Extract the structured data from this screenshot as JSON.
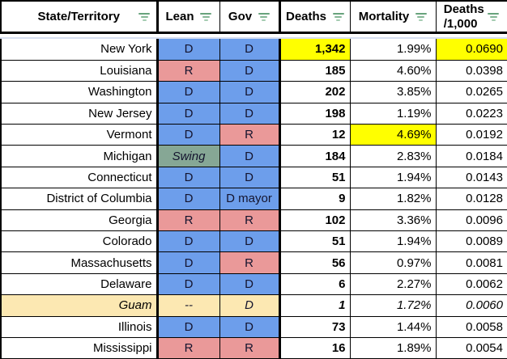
{
  "table": {
    "columns": [
      {
        "id": "state",
        "label": "State/Territory"
      },
      {
        "id": "lean",
        "label": "Lean"
      },
      {
        "id": "gov",
        "label": "Gov"
      },
      {
        "id": "deaths",
        "label": "Deaths"
      },
      {
        "id": "mortality",
        "label": "Mortality"
      },
      {
        "id": "rate",
        "label": "Deaths\n/1,000"
      }
    ],
    "rows": [
      {
        "state": "New York",
        "lean": "D",
        "lean_bg": "dem",
        "gov": "D",
        "gov_bg": "dem",
        "deaths": "1,342",
        "deaths_bg": "highlight",
        "mortality": "1.99%",
        "rate": "0.0690",
        "rate_bg": "highlight"
      },
      {
        "state": "Louisiana",
        "lean": "R",
        "lean_bg": "rep",
        "gov": "D",
        "gov_bg": "dem",
        "deaths": "185",
        "mortality": "4.60%",
        "rate": "0.0398"
      },
      {
        "state": "Washington",
        "lean": "D",
        "lean_bg": "dem",
        "gov": "D",
        "gov_bg": "dem",
        "deaths": "202",
        "mortality": "3.85%",
        "rate": "0.0265"
      },
      {
        "state": "New Jersey",
        "lean": "D",
        "lean_bg": "dem",
        "gov": "D",
        "gov_bg": "dem",
        "deaths": "198",
        "mortality": "1.19%",
        "rate": "0.0223"
      },
      {
        "state": "Vermont",
        "lean": "D",
        "lean_bg": "dem",
        "gov": "R",
        "gov_bg": "rep",
        "deaths": "12",
        "mortality": "4.69%",
        "mortality_bg": "highlight",
        "rate": "0.0192"
      },
      {
        "state": "Michigan",
        "lean": "Swing",
        "lean_bg": "swing",
        "lean_italic": true,
        "gov": "D",
        "gov_bg": "dem",
        "deaths": "184",
        "mortality": "2.83%",
        "rate": "0.0184"
      },
      {
        "state": "Connecticut",
        "lean": "D",
        "lean_bg": "dem",
        "gov": "D",
        "gov_bg": "dem",
        "deaths": "51",
        "mortality": "1.94%",
        "rate": "0.0143"
      },
      {
        "state": "District of Columbia",
        "lean": "D",
        "lean_bg": "dem",
        "gov": "D mayor",
        "gov_bg": "dem",
        "deaths": "9",
        "mortality": "1.82%",
        "rate": "0.0128"
      },
      {
        "state": "Georgia",
        "lean": "R",
        "lean_bg": "rep",
        "gov": "R",
        "gov_bg": "rep",
        "deaths": "102",
        "mortality": "3.36%",
        "rate": "0.0096"
      },
      {
        "state": "Colorado",
        "lean": "D",
        "lean_bg": "dem",
        "gov": "D",
        "gov_bg": "dem",
        "deaths": "51",
        "mortality": "1.94%",
        "rate": "0.0089"
      },
      {
        "state": "Massachusetts",
        "lean": "D",
        "lean_bg": "dem",
        "gov": "R",
        "gov_bg": "rep",
        "deaths": "56",
        "mortality": "0.97%",
        "rate": "0.0081"
      },
      {
        "state": "Delaware",
        "lean": "D",
        "lean_bg": "dem",
        "gov": "D",
        "gov_bg": "dem",
        "deaths": "6",
        "mortality": "2.27%",
        "rate": "0.0062"
      },
      {
        "state": "Guam",
        "italic": true,
        "state_bg": "territory",
        "lean": "--",
        "lean_bg": "territory",
        "gov": "D",
        "gov_bg": "territory",
        "deaths": "1",
        "mortality": "1.72%",
        "rate": "0.0060"
      },
      {
        "state": "Illinois",
        "lean": "D",
        "lean_bg": "dem",
        "gov": "D",
        "gov_bg": "dem",
        "deaths": "73",
        "mortality": "1.44%",
        "rate": "0.0058"
      },
      {
        "state": "Mississippi",
        "lean": "R",
        "lean_bg": "rep",
        "gov": "R",
        "gov_bg": "rep",
        "deaths": "16",
        "mortality": "1.89%",
        "rate": "0.0054"
      }
    ]
  },
  "colors": {
    "dem": "#6d9eeb",
    "rep": "#ea9999",
    "swing": "#86a795",
    "territory": "#fce8b2",
    "highlight": "#ffff00",
    "filter_icon_green": "#67a37c",
    "grid": "#000000",
    "freeze_divider": "#d7dff1"
  }
}
